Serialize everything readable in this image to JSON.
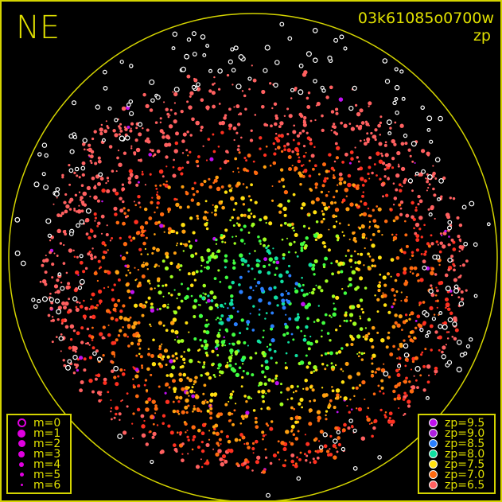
{
  "header": {
    "direction": "NE",
    "frame_id": "03k61085o0700w",
    "mode": "zp"
  },
  "circle_color": "#d4d400",
  "magnitude_legend": [
    {
      "label": "m=0",
      "style": "ring"
    },
    {
      "label": "m=1",
      "size": 5
    },
    {
      "label": "m=2",
      "size": 4.5
    },
    {
      "label": "m=3",
      "size": 4
    },
    {
      "label": "m=4",
      "size": 3
    },
    {
      "label": "m=5",
      "size": 2.5
    },
    {
      "label": "m=6",
      "size": 1.5
    }
  ],
  "zp_legend": [
    {
      "label": "zp=9.5",
      "color": "#c010f0"
    },
    {
      "label": "zp=9.0",
      "color": "#b020e0"
    },
    {
      "label": "zp=8.5",
      "color": "#2a80ff"
    },
    {
      "label": "zp=8.0",
      "color": "#10e0a0"
    },
    {
      "label": "zp=7.5",
      "color": "#ffe010"
    },
    {
      "label": "zp=7.0",
      "color": "#ff6a10"
    },
    {
      "label": "zp=6.5",
      "color": "#ff6060"
    }
  ],
  "unmeasured_star_color": "#ffffff"
}
